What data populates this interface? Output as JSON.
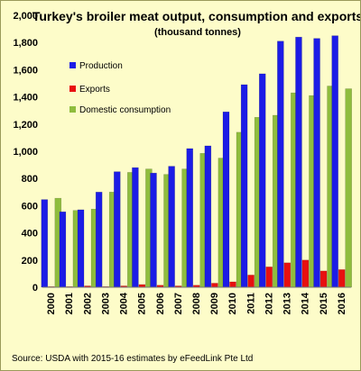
{
  "chart_data": {
    "type": "bar",
    "title": "Turkey's broiler meat output, consumption and exports",
    "subtitle": "(thousand tonnes)",
    "categories": [
      "2000",
      "2001",
      "2002",
      "2003",
      "2004",
      "2005",
      "2006",
      "2007",
      "2008",
      "2009",
      "2010",
      "2011",
      "2012",
      "2013",
      "2014",
      "2015",
      "2016"
    ],
    "series": [
      {
        "name": "Production",
        "color": "#1c1ce6",
        "values": [
          645,
          555,
          570,
          700,
          850,
          880,
          840,
          890,
          1020,
          1040,
          1290,
          1490,
          1570,
          1810,
          1840,
          1830,
          1850
        ]
      },
      {
        "name": "Exports",
        "color": "#e81010",
        "values": [
          5,
          5,
          10,
          5,
          10,
          20,
          15,
          10,
          15,
          30,
          40,
          90,
          150,
          180,
          200,
          120,
          130
        ]
      },
      {
        "name": "Domestic consumption",
        "color": "#8fbd3d",
        "values": [
          655,
          565,
          575,
          700,
          845,
          870,
          830,
          870,
          985,
          950,
          1140,
          1250,
          1265,
          1430,
          1410,
          1480,
          1460
        ]
      }
    ],
    "ylim": [
      0,
      2000
    ],
    "yticks": [
      "0",
      "200",
      "400",
      "600",
      "800",
      "1,000",
      "1,200",
      "1,400",
      "1,600",
      "1,800",
      "2,000"
    ],
    "grid": false,
    "legend_position": "left-inside"
  },
  "source": "Source: USDA with 2015-16 estimates by eFeedLink Pte Ltd"
}
